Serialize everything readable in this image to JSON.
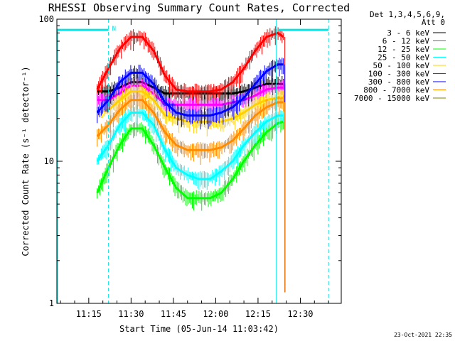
{
  "chart_data": {
    "type": "line",
    "title": "RHESSI Observing Summary Count Rates, Corrected",
    "xlabel": "Start Time (05-Jun-14 11:03:42)",
    "ylabel": "Corrected Count Rate (s⁻¹ detector⁻¹)",
    "yscale": "log",
    "ylim": [
      1,
      100
    ],
    "xlim": [
      "11:03:42",
      "12:44:30"
    ],
    "x_ticks": [
      "11:15",
      "11:30",
      "11:45",
      "12:00",
      "12:15",
      "12:30"
    ],
    "y_ticks": [
      "1",
      "10",
      "100"
    ],
    "grid": false,
    "legend_placement": "top-right outside",
    "legend_header": [
      "Det 1,3,4,5,6,9,",
      "Att 0"
    ],
    "series": [
      {
        "name": "3 - 6 keV",
        "color": "#000000",
        "x": [
          "11:18",
          "11:22",
          "11:26",
          "11:30",
          "11:34",
          "11:38",
          "11:42",
          "11:46",
          "11:50",
          "11:54",
          "11:58",
          "12:02",
          "12:06",
          "12:10",
          "12:14",
          "12:18",
          "12:22",
          "12:24"
        ],
        "y": [
          31,
          31,
          33,
          36,
          36,
          33,
          30,
          30,
          30,
          30,
          30,
          30,
          30,
          31,
          33,
          35,
          35,
          35
        ]
      },
      {
        "name": "6 - 12 keV",
        "color": "#ff00ff",
        "x": [
          "11:18",
          "11:22",
          "11:26",
          "11:30",
          "11:34",
          "11:38",
          "11:42",
          "11:46",
          "11:50",
          "11:54",
          "11:58",
          "12:02",
          "12:06",
          "12:10",
          "12:14",
          "12:18",
          "12:22",
          "12:24"
        ],
        "y": [
          27,
          27,
          30,
          34,
          34,
          30,
          25,
          25,
          25,
          25,
          25,
          25,
          26,
          27,
          29,
          32,
          33,
          33
        ]
      },
      {
        "name": "12 - 25 keV",
        "color": "#00ff00",
        "x": [
          "11:18",
          "11:22",
          "11:26",
          "11:30",
          "11:34",
          "11:38",
          "11:42",
          "11:46",
          "11:50",
          "11:54",
          "11:58",
          "12:02",
          "12:06",
          "12:10",
          "12:14",
          "12:18",
          "12:22",
          "12:24"
        ],
        "y": [
          6,
          9,
          13,
          17,
          17,
          13,
          9,
          6.5,
          5.5,
          5.5,
          5.5,
          6,
          7.5,
          10,
          13,
          16,
          18.5,
          19
        ]
      },
      {
        "name": "25 - 50 keV",
        "color": "#00ffff",
        "x": [
          "11:18",
          "11:22",
          "11:26",
          "11:30",
          "11:34",
          "11:38",
          "11:42",
          "11:46",
          "11:50",
          "11:54",
          "11:58",
          "12:02",
          "12:06",
          "12:10",
          "12:14",
          "12:18",
          "12:22",
          "12:24"
        ],
        "y": [
          10,
          13,
          18,
          22,
          22,
          18,
          12,
          9,
          8,
          7.5,
          7.5,
          8.5,
          10,
          13,
          16,
          19,
          21,
          21
        ]
      },
      {
        "name": "50 - 100 keV",
        "color": "#ffd000",
        "x": [
          "11:18",
          "11:22",
          "11:26",
          "11:30",
          "11:34",
          "11:38",
          "11:42",
          "11:46",
          "11:50",
          "11:54",
          "11:58",
          "12:02",
          "12:06",
          "12:10",
          "12:14",
          "12:18",
          "12:22",
          "12:24"
        ],
        "y": [
          22,
          23,
          27,
          31,
          31,
          27,
          21,
          20,
          19,
          19,
          19,
          19,
          20,
          22,
          25,
          27,
          28,
          28
        ]
      },
      {
        "name": "100 - 300 keV",
        "color": "#ff0000",
        "x": [
          "11:18",
          "11:22",
          "11:26",
          "11:30",
          "11:34",
          "11:38",
          "11:42",
          "11:46",
          "11:50",
          "11:54",
          "11:58",
          "12:02",
          "12:06",
          "12:10",
          "12:14",
          "12:18",
          "12:22",
          "12:24"
        ],
        "y": [
          32,
          45,
          62,
          75,
          75,
          60,
          40,
          32,
          31,
          31,
          31,
          32,
          36,
          45,
          60,
          75,
          80,
          75
        ]
      },
      {
        "name": "300 - 800 keV",
        "color": "#0000ff",
        "x": [
          "11:18",
          "11:22",
          "11:26",
          "11:30",
          "11:34",
          "11:38",
          "11:42",
          "11:46",
          "11:50",
          "11:54",
          "11:58",
          "12:02",
          "12:06",
          "12:10",
          "12:14",
          "12:18",
          "12:22",
          "12:24"
        ],
        "y": [
          22,
          27,
          36,
          42,
          42,
          35,
          26,
          22,
          21,
          21,
          21,
          22,
          24,
          28,
          35,
          43,
          48,
          48
        ]
      },
      {
        "name": "800 - 7000 keV",
        "color": "#ff8c00",
        "x": [
          "11:18",
          "11:22",
          "11:26",
          "11:30",
          "11:34",
          "11:38",
          "11:42",
          "11:46",
          "11:50",
          "11:54",
          "11:58",
          "12:02",
          "12:06",
          "12:10",
          "12:14",
          "12:18",
          "12:22",
          "12:24"
        ],
        "y": [
          15,
          18,
          23,
          27,
          27,
          22,
          16,
          13,
          12,
          12,
          12,
          12.5,
          14,
          17,
          21,
          24,
          26,
          26
        ]
      },
      {
        "name": "7000 - 15000 keV",
        "color": "#808000",
        "x": [],
        "y": []
      }
    ],
    "annotations": {
      "attenuator_marker": "N",
      "timestamp": "23-Oct-2021 22:35"
    }
  }
}
